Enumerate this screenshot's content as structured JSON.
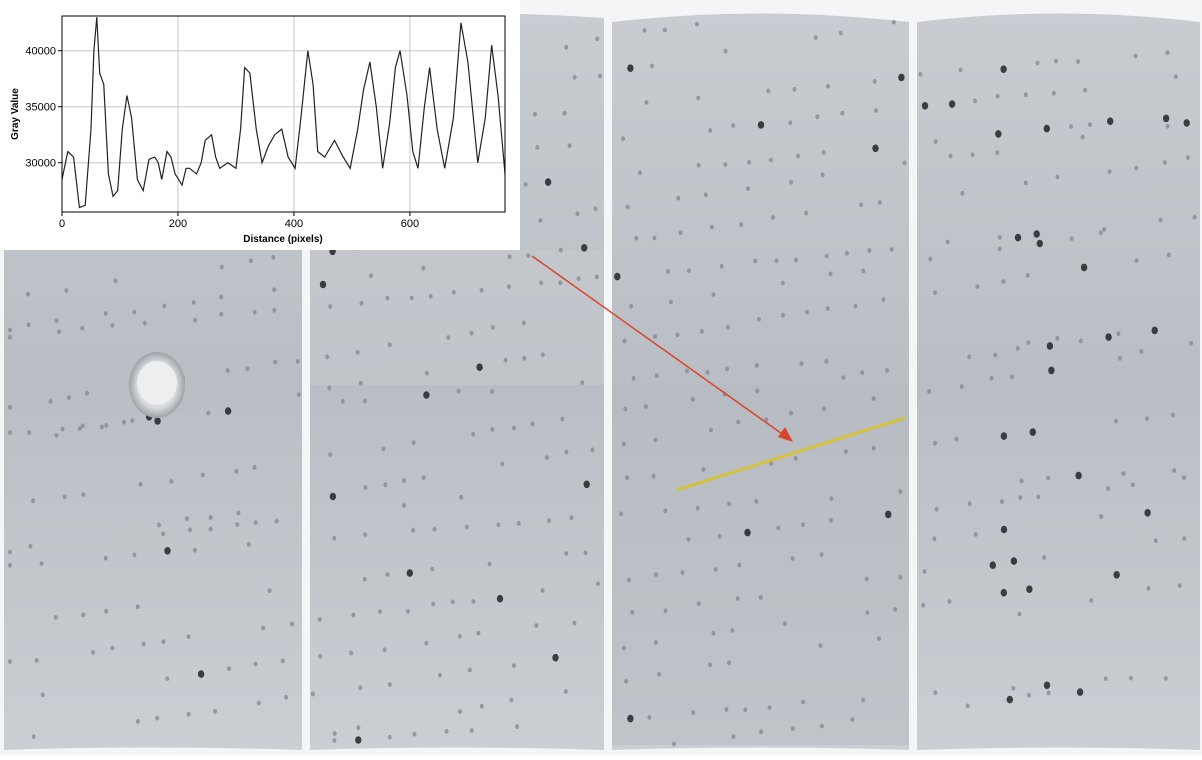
{
  "chart_data": {
    "type": "line",
    "y_label": "Gray Value",
    "x_label": "Distance (pixels)",
    "x": [
      0,
      10,
      20,
      30,
      40,
      50,
      55,
      60,
      65,
      72,
      80,
      88,
      96,
      104,
      112,
      120,
      130,
      140,
      150,
      160,
      166,
      172,
      181,
      188,
      195,
      207,
      214,
      220,
      232,
      240,
      247,
      258,
      265,
      272,
      286,
      300,
      308,
      315,
      324,
      335,
      345,
      356,
      367,
      379,
      390,
      402,
      412,
      424,
      433,
      441,
      453,
      470,
      485,
      497,
      510,
      520,
      531,
      542,
      553,
      565,
      575,
      583,
      595,
      605,
      614,
      625,
      634,
      647,
      660,
      675,
      688,
      700,
      717,
      730,
      741,
      752,
      764
    ],
    "values": [
      28500,
      31000,
      30500,
      26000,
      26200,
      33000,
      40000,
      43000,
      38000,
      37000,
      29000,
      27000,
      27500,
      33000,
      36000,
      34000,
      28500,
      27500,
      30300,
      30500,
      30000,
      28500,
      31000,
      30500,
      29000,
      28000,
      29500,
      29500,
      29000,
      30000,
      32000,
      32500,
      30500,
      29500,
      30000,
      29500,
      33000,
      38500,
      38000,
      33000,
      30000,
      31500,
      32500,
      33000,
      30500,
      29500,
      34000,
      40000,
      37000,
      31000,
      30500,
      32000,
      30500,
      29500,
      33000,
      36500,
      39000,
      35000,
      29500,
      33500,
      38500,
      40000,
      36000,
      31000,
      29500,
      35000,
      38500,
      33000,
      29500,
      34000,
      42500,
      39000,
      30000,
      34000,
      40500,
      36000,
      29000
    ],
    "color": "#222222",
    "xlim": [
      0,
      764
    ],
    "ylim": [
      25600,
      43100
    ],
    "xticks": [
      0,
      200,
      400,
      600
    ],
    "yticks": [
      30000,
      35000,
      40000
    ],
    "grid": true
  }
}
